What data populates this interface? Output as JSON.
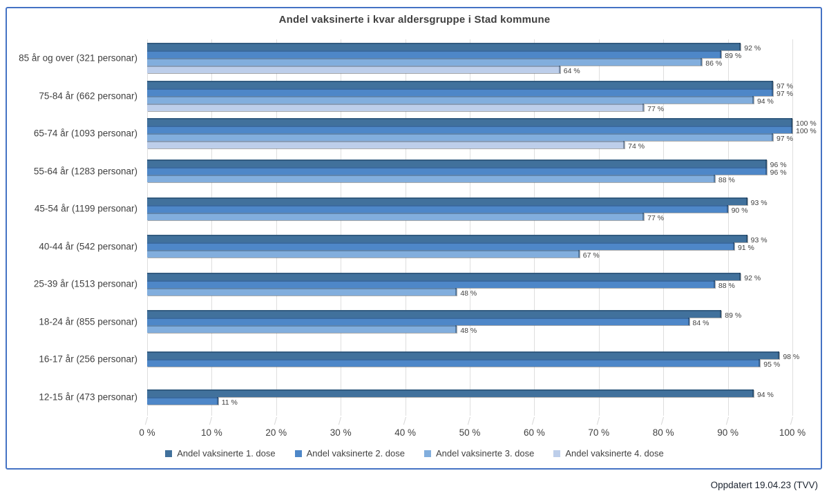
{
  "title": "Andel vaksinerte i kvar aldersgruppe i Stad kommune",
  "footer": "Oppdatert 19.04.23 (TVV)",
  "colors": {
    "frame_border": "#4472C4",
    "gridline": "#DEDEDE",
    "text": "#404040",
    "dose1": "#41719C",
    "dose2": "#4E87C8",
    "dose3": "#82AEDD",
    "dose4": "#BDCEEA"
  },
  "chart_data": {
    "type": "bar",
    "orientation": "horizontal",
    "title": "Andel vaksinerte i kvar aldersgruppe i Stad kommune",
    "categories": [
      "85 år og over (321 personar)",
      "75-84 år (662 personar)",
      "65-74 år (1093 personar)",
      "55-64 år (1283 personar)",
      "45-54 år (1199 personar)",
      "40-44 år (542 personar)",
      "25-39 år (1513 personar)",
      "18-24 år (855 personar)",
      "16-17 år (256 personar)",
      "12-15 år (473 personar)"
    ],
    "series": [
      {
        "name": "Andel vaksinerte 1. dose",
        "color": "#41719C",
        "values": [
          92,
          97,
          100,
          96,
          93,
          93,
          92,
          89,
          98,
          94
        ]
      },
      {
        "name": "Andel vaksinerte 2. dose",
        "color": "#4E87C8",
        "values": [
          89,
          97,
          100,
          96,
          90,
          91,
          88,
          84,
          95,
          11
        ]
      },
      {
        "name": "Andel vaksinerte 3. dose",
        "color": "#82AEDD",
        "values": [
          86,
          94,
          97,
          88,
          77,
          67,
          48,
          48,
          null,
          null
        ]
      },
      {
        "name": "Andel vaksinerte 4. dose",
        "color": "#BDCEEA",
        "values": [
          64,
          77,
          74,
          null,
          null,
          null,
          null,
          null,
          null,
          null
        ]
      }
    ],
    "xlim": [
      0,
      100
    ],
    "x_ticks": [
      "0 %",
      "10 %",
      "20 %",
      "30 %",
      "40 %",
      "50 %",
      "60 %",
      "70 %",
      "80 %",
      "90 %",
      "100 %"
    ],
    "value_suffix": " %",
    "data_labels": true,
    "grid": true,
    "legend_position": "bottom"
  }
}
